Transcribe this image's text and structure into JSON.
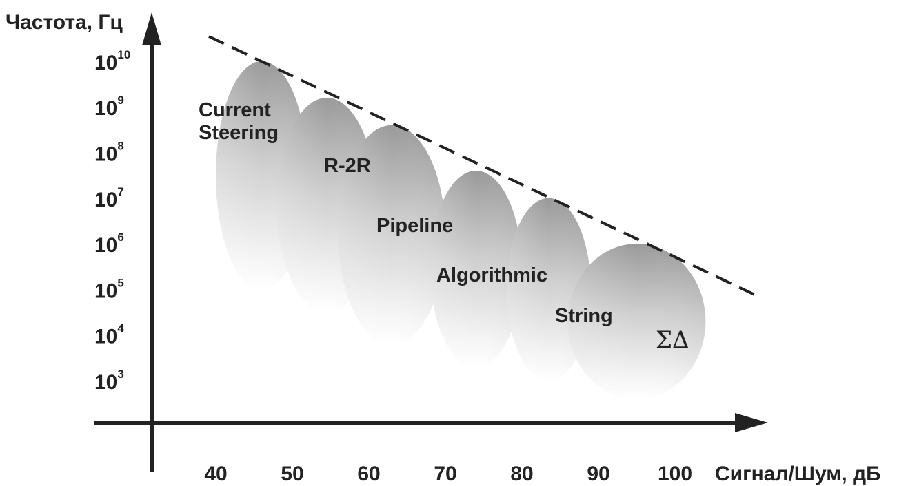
{
  "chart_data": {
    "type": "area",
    "title": "",
    "ylabel": "Частота, Гц",
    "xlabel": "Сигнал/Шум, дБ",
    "x_ticks": [
      "40",
      "50",
      "60",
      "70",
      "80",
      "90",
      "100"
    ],
    "y_ticks": [
      {
        "base": "10",
        "exp": "10"
      },
      {
        "base": "10",
        "exp": "9"
      },
      {
        "base": "10",
        "exp": "8"
      },
      {
        "base": "10",
        "exp": "7"
      },
      {
        "base": "10",
        "exp": "6"
      },
      {
        "base": "10",
        "exp": "5"
      },
      {
        "base": "10",
        "exp": "4"
      },
      {
        "base": "10",
        "exp": "3"
      }
    ],
    "y_scale": "log",
    "grid": false,
    "trend_line": "dashed",
    "regions": [
      {
        "name": "Current Steering",
        "lines": [
          "Current",
          "Steering"
        ],
        "snr_min": 40,
        "snr_max": 52,
        "freq_min_exp": 5.0,
        "freq_max_exp": 10.0
      },
      {
        "name": "R-2R",
        "lines": [
          "R-2R"
        ],
        "snr_min": 48,
        "snr_max": 61,
        "freq_min_exp": 4.5,
        "freq_max_exp": 9.2
      },
      {
        "name": "Pipeline",
        "lines": [
          "Pipeline"
        ],
        "snr_min": 56,
        "snr_max": 70,
        "freq_min_exp": 3.8,
        "freq_max_exp": 8.6
      },
      {
        "name": "Algorithmic",
        "lines": [
          "Algorithmic"
        ],
        "snr_min": 68,
        "snr_max": 80,
        "freq_min_exp": 3.3,
        "freq_max_exp": 7.6
      },
      {
        "name": "String",
        "lines": [
          "String"
        ],
        "snr_min": 78,
        "snr_max": 89,
        "freq_min_exp": 3.0,
        "freq_max_exp": 7.0
      },
      {
        "name": "ΣΔ",
        "lines": [
          "ΣΔ"
        ],
        "snr_min": 86,
        "snr_max": 104,
        "freq_min_exp": 2.6,
        "freq_max_exp": 6.0
      }
    ]
  }
}
